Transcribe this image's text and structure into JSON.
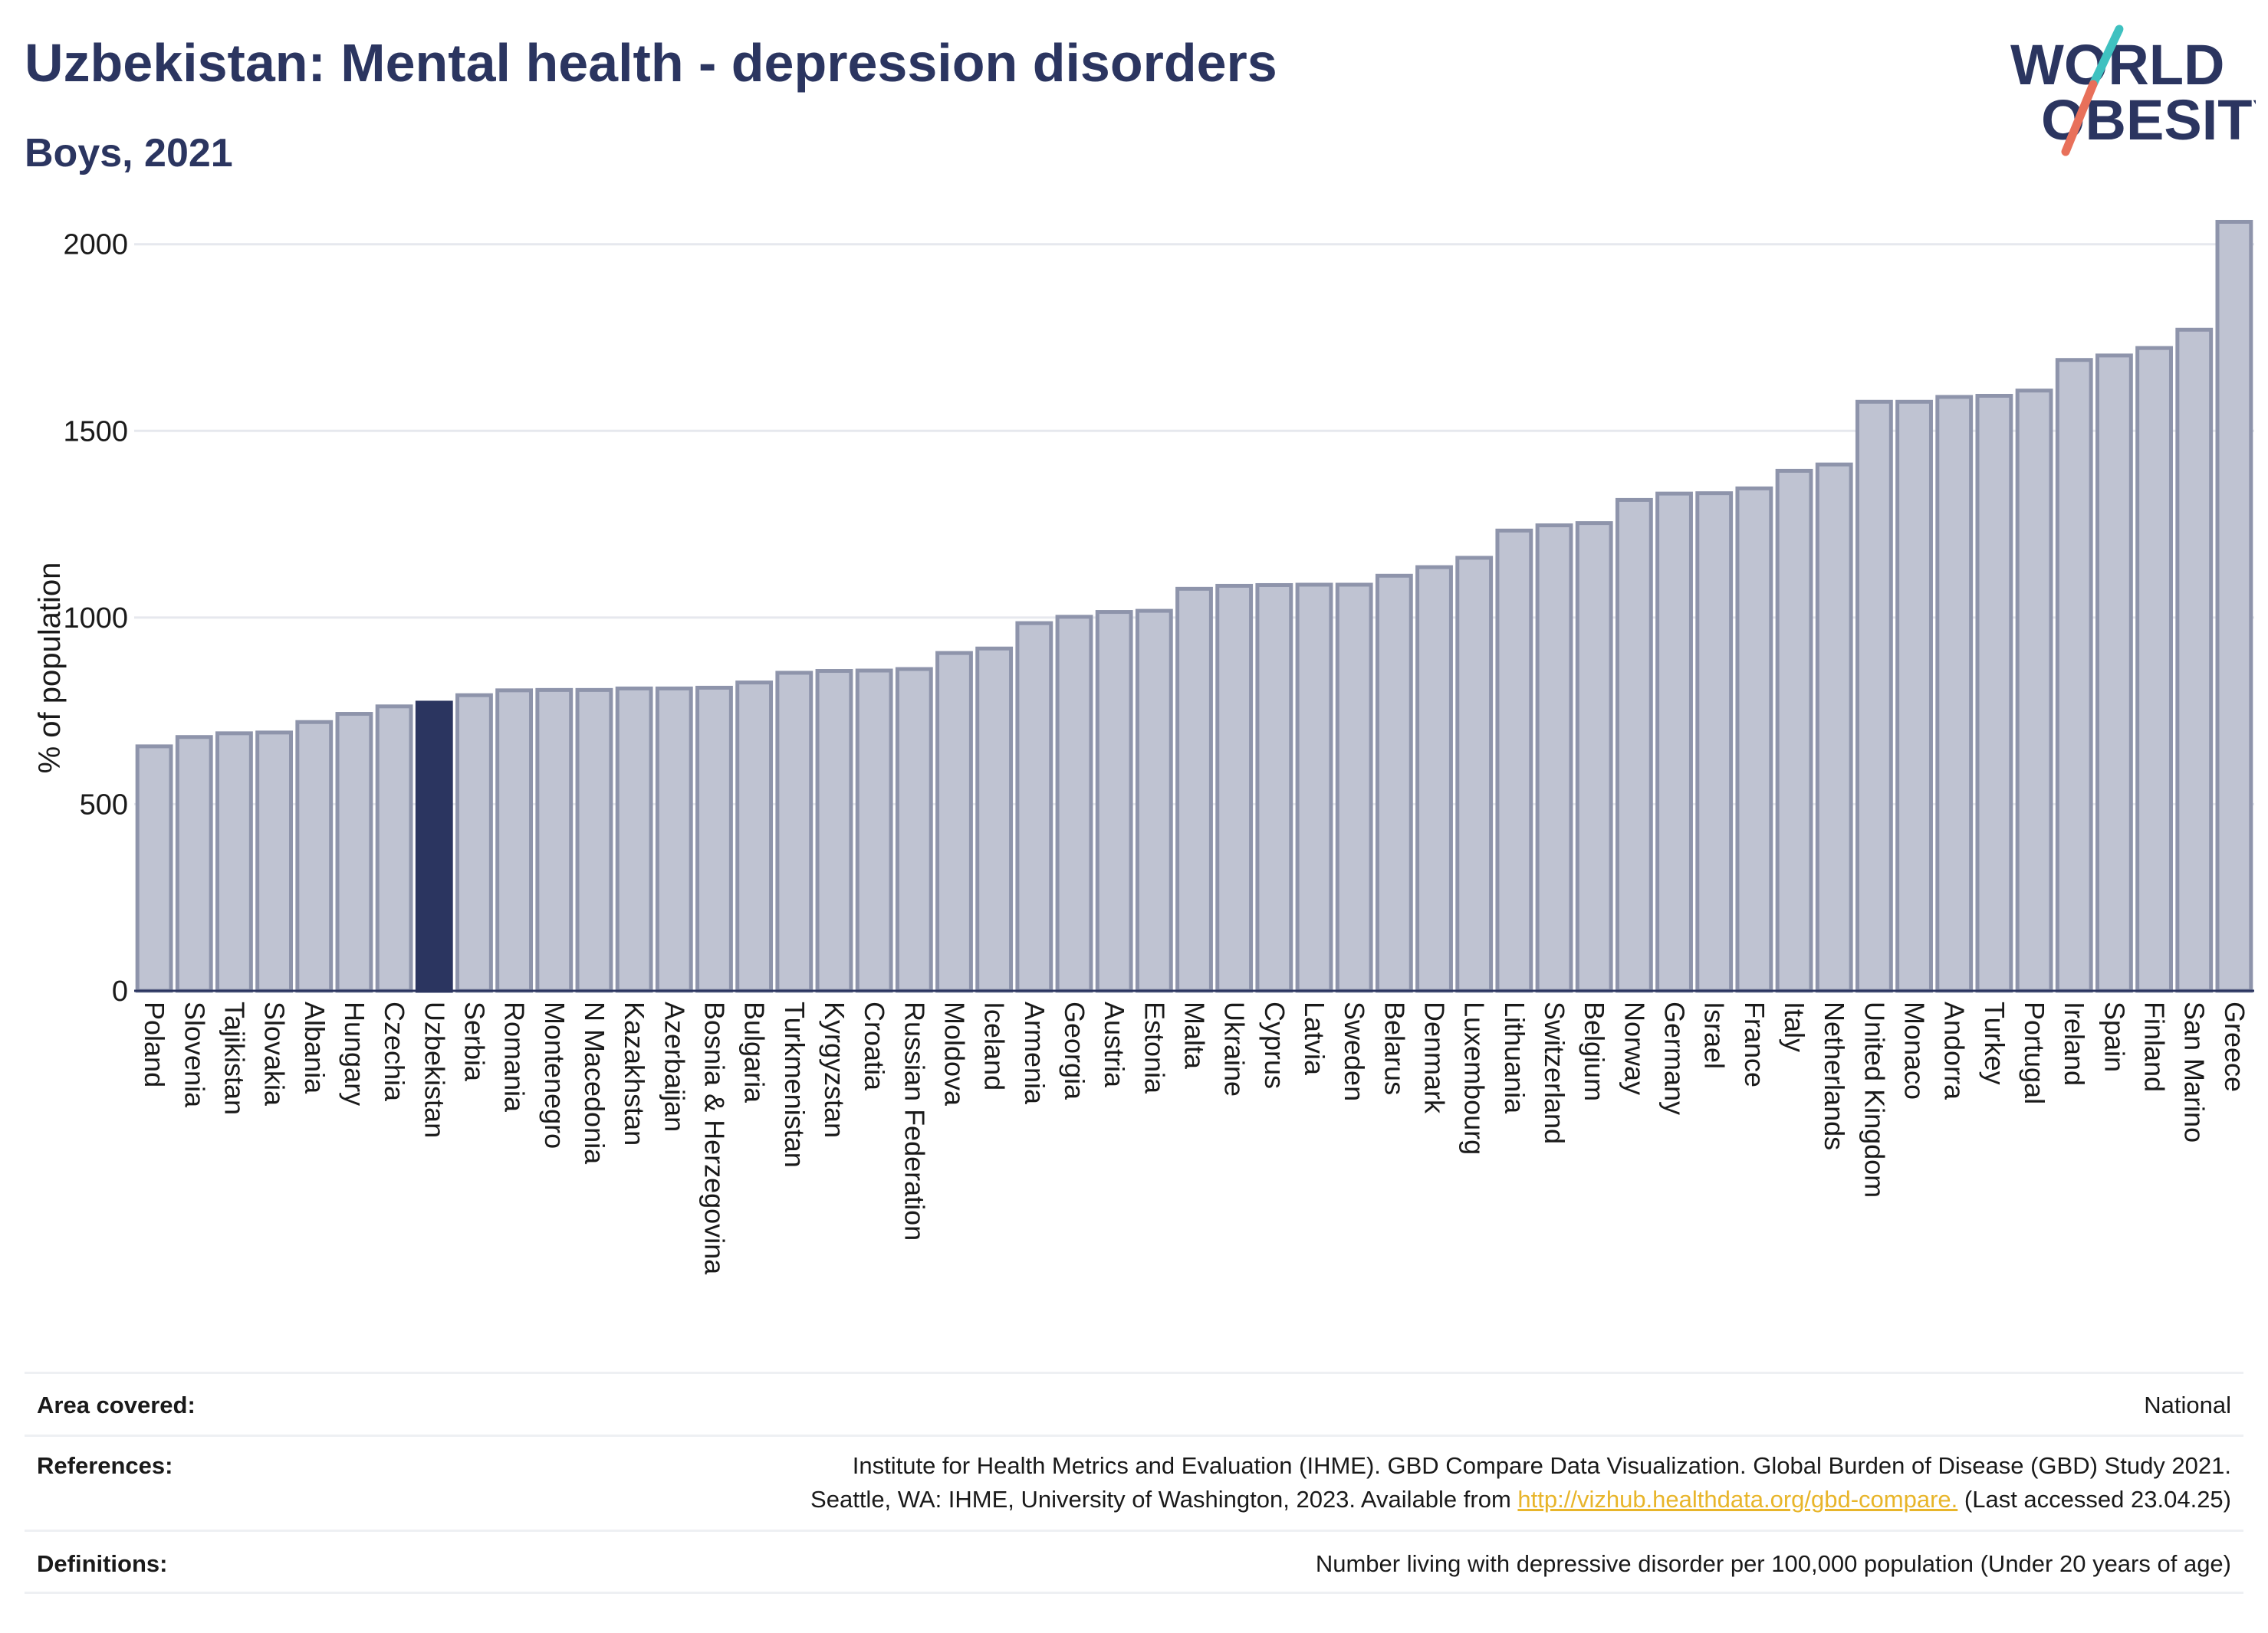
{
  "header": {
    "title": "Uzbekistan: Mental health - depression disorders",
    "subtitle": "Boys, 2021"
  },
  "logo": {
    "line1": "WORLD",
    "line2": "OBESITY",
    "accent_teal": "#3fc1c0",
    "accent_coral": "#e8705a",
    "text_color": "#2b3560"
  },
  "chart_data": {
    "type": "bar",
    "ylabel": "% of population",
    "ylim": [
      0,
      2100
    ],
    "yticks": [
      0,
      500,
      1000,
      1500,
      2000
    ],
    "grid": true,
    "highlight": "Uzbekistan",
    "colors": {
      "default_fill": "#bfc3d2",
      "default_stroke": "#8e94ab",
      "highlight_fill": "#2b3560"
    },
    "categories": [
      "Poland",
      "Slovenia",
      "Tajikistan",
      "Slovakia",
      "Albania",
      "Hungary",
      "Czechia",
      "Uzbekistan",
      "Serbia",
      "Romania",
      "Montenegro",
      "N Macedonia",
      "Kazakhstan",
      "Azerbaijan",
      "Bosnia & Herzegovina",
      "Bulgaria",
      "Turkmenistan",
      "Kyrgyzstan",
      "Croatia",
      "Russian Federation",
      "Moldova",
      "Iceland",
      "Armenia",
      "Georgia",
      "Austria",
      "Estonia",
      "Malta",
      "Ukraine",
      "Cyprus",
      "Latvia",
      "Sweden",
      "Belarus",
      "Denmark",
      "Luxembourg",
      "Lithuania",
      "Switzerland",
      "Belgium",
      "Norway",
      "Germany",
      "Israel",
      "France",
      "Italy",
      "Netherlands",
      "United Kingdom",
      "Monaco",
      "Andorra",
      "Turkey",
      "Portugal",
      "Ireland",
      "Spain",
      "Finland",
      "San Marino",
      "Greece"
    ],
    "values": [
      655,
      680,
      690,
      692,
      720,
      742,
      762,
      772,
      792,
      805,
      806,
      806,
      810,
      810,
      812,
      826,
      852,
      857,
      858,
      862,
      905,
      917,
      985,
      1002,
      1015,
      1018,
      1077,
      1085,
      1087,
      1088,
      1088,
      1112,
      1135,
      1160,
      1233,
      1247,
      1253,
      1315,
      1332,
      1333,
      1346,
      1393,
      1410,
      1578,
      1578,
      1591,
      1594,
      1608,
      1690,
      1702,
      1722,
      1771,
      2060
    ]
  },
  "info": {
    "area": {
      "label": "Area covered:",
      "value": "National"
    },
    "references": {
      "label": "References:",
      "line1": "Institute for Health Metrics and Evaluation (IHME). GBD Compare Data Visualization. Global Burden of Disease (GBD) Study 2021.",
      "line2_pre": "Seattle, WA: IHME, University of Washington, 2023. Available from ",
      "link": "http://vizhub.healthdata.org/gbd-compare.",
      "line2_post": " (Last accessed 23.04.25)"
    },
    "definitions": {
      "label": "Definitions:",
      "value": "Number living with depressive disorder per 100,000 population (Under 20 years of age)"
    }
  }
}
